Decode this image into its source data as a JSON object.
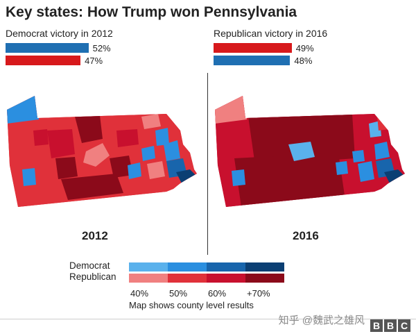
{
  "title": "Key states: How Trump won Pennsylvania",
  "left_panel": {
    "heading": "Democrat victory in 2012",
    "year": "2012",
    "results": [
      {
        "party": "Democrat",
        "pct_label": "52%",
        "value": 52,
        "color": "#1f6fb2"
      },
      {
        "party": "Republican",
        "pct_label": "47%",
        "value": 47,
        "color": "#d7191c"
      }
    ]
  },
  "right_panel": {
    "heading": "Republican victory in 2016",
    "year": "2016",
    "results": [
      {
        "party": "Republican",
        "pct_label": "49%",
        "value": 49,
        "color": "#d7191c"
      },
      {
        "party": "Democrat",
        "pct_label": "48%",
        "value": 48,
        "color": "#1f6fb2"
      }
    ]
  },
  "legend": {
    "democrat_label": "Democrat",
    "republican_label": "Republican",
    "democrat_colors": [
      "#5ab1ec",
      "#2b8fe0",
      "#1865ac",
      "#0b3f73"
    ],
    "republican_colors": [
      "#f08080",
      "#e0313a",
      "#c8102e",
      "#8b0a1a"
    ],
    "ticks": [
      "40%",
      "50%",
      "60%",
      "+70%"
    ],
    "footnote": "Map shows county level results"
  },
  "watermark": "知乎 @魏武之雄风",
  "logo_letters": [
    "B",
    "B",
    "C"
  ]
}
